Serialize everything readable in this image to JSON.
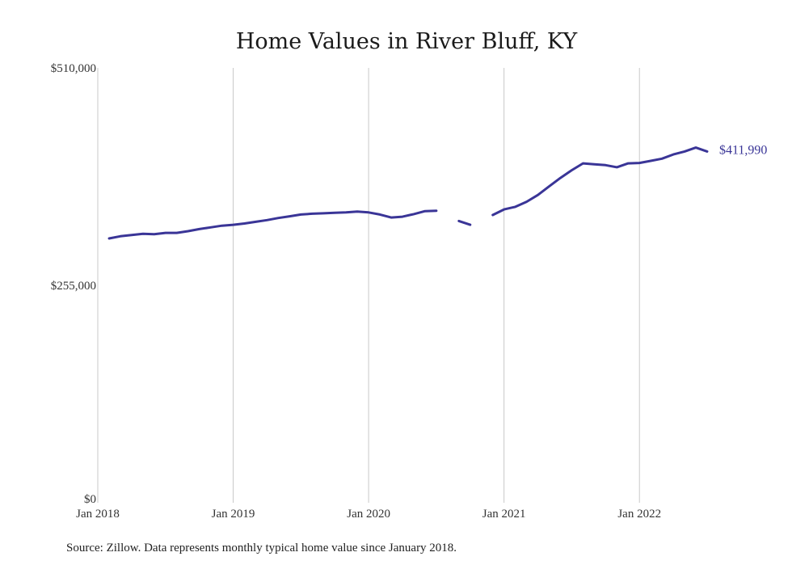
{
  "chart_data": {
    "type": "line",
    "title": "Home Values in River Bluff, KY",
    "xlabel": "",
    "ylabel": "",
    "y_ticks": [
      {
        "value": 0,
        "label": "$0"
      },
      {
        "value": 255000,
        "label": "$255,000"
      },
      {
        "value": 510000,
        "label": "$510,000"
      }
    ],
    "ylim": [
      0,
      510000
    ],
    "x_ticks": [
      {
        "value": "2018-01",
        "label": "Jan 2018"
      },
      {
        "value": "2019-01",
        "label": "Jan 2019"
      },
      {
        "value": "2020-01",
        "label": "Jan 2020"
      },
      {
        "value": "2021-01",
        "label": "Jan 2021"
      },
      {
        "value": "2022-01",
        "label": "Jan 2022"
      }
    ],
    "xlim": [
      "2018-01",
      "2022-07"
    ],
    "grid": {
      "vertical": true,
      "horizontal": false
    },
    "legend": "none",
    "colors": {
      "line": "#3a3597",
      "grid": "#c8c8c8"
    },
    "series": [
      {
        "end_label": "$411,990",
        "points": [
          {
            "x": "2018-02",
            "y": 310000
          },
          {
            "x": "2018-03",
            "y": 312500
          },
          {
            "x": "2018-04",
            "y": 314000
          },
          {
            "x": "2018-05",
            "y": 315500
          },
          {
            "x": "2018-06",
            "y": 315000
          },
          {
            "x": "2018-07",
            "y": 316500
          },
          {
            "x": "2018-08",
            "y": 316500
          },
          {
            "x": "2018-09",
            "y": 318500
          },
          {
            "x": "2018-10",
            "y": 321000
          },
          {
            "x": "2018-11",
            "y": 323000
          },
          {
            "x": "2018-12",
            "y": 325000
          },
          {
            "x": "2019-01",
            "y": 326000
          },
          {
            "x": "2019-02",
            "y": 327500
          },
          {
            "x": "2019-03",
            "y": 329500
          },
          {
            "x": "2019-04",
            "y": 331500
          },
          {
            "x": "2019-05",
            "y": 334000
          },
          {
            "x": "2019-06",
            "y": 336000
          },
          {
            "x": "2019-07",
            "y": 338000
          },
          {
            "x": "2019-08",
            "y": 339000
          },
          {
            "x": "2019-09",
            "y": 339500
          },
          {
            "x": "2019-10",
            "y": 340000
          },
          {
            "x": "2019-11",
            "y": 340500
          },
          {
            "x": "2019-12",
            "y": 341500
          },
          {
            "x": "2020-01",
            "y": 340500
          },
          {
            "x": "2020-02",
            "y": 338000
          },
          {
            "x": "2020-03",
            "y": 334500
          },
          {
            "x": "2020-04",
            "y": 335500
          },
          {
            "x": "2020-05",
            "y": 338500
          },
          {
            "x": "2020-06",
            "y": 342000
          },
          {
            "x": "2020-07",
            "y": 342500
          },
          {
            "x": "2020-08",
            "y": null
          },
          {
            "x": "2020-09",
            "y": 330500
          },
          {
            "x": "2020-10",
            "y": 326000
          },
          {
            "x": "2020-11",
            "y": null
          },
          {
            "x": "2020-12",
            "y": 337500
          },
          {
            "x": "2021-01",
            "y": 344000
          },
          {
            "x": "2021-02",
            "y": 347000
          },
          {
            "x": "2021-03",
            "y": 353000
          },
          {
            "x": "2021-04",
            "y": 361000
          },
          {
            "x": "2021-05",
            "y": 371000
          },
          {
            "x": "2021-06",
            "y": 381000
          },
          {
            "x": "2021-07",
            "y": 390000
          },
          {
            "x": "2021-08",
            "y": 398000
          },
          {
            "x": "2021-09",
            "y": 397000
          },
          {
            "x": "2021-10",
            "y": 396000
          },
          {
            "x": "2021-11",
            "y": 393500
          },
          {
            "x": "2021-12",
            "y": 398000
          },
          {
            "x": "2022-01",
            "y": 398500
          },
          {
            "x": "2022-02",
            "y": 401000
          },
          {
            "x": "2022-03",
            "y": 403500
          },
          {
            "x": "2022-04",
            "y": 408500
          },
          {
            "x": "2022-05",
            "y": 412000
          },
          {
            "x": "2022-06",
            "y": 416500
          },
          {
            "x": "2022-07",
            "y": 411990
          }
        ]
      }
    ],
    "source": "Source: Zillow. Data represents monthly typical home value since January 2018."
  }
}
